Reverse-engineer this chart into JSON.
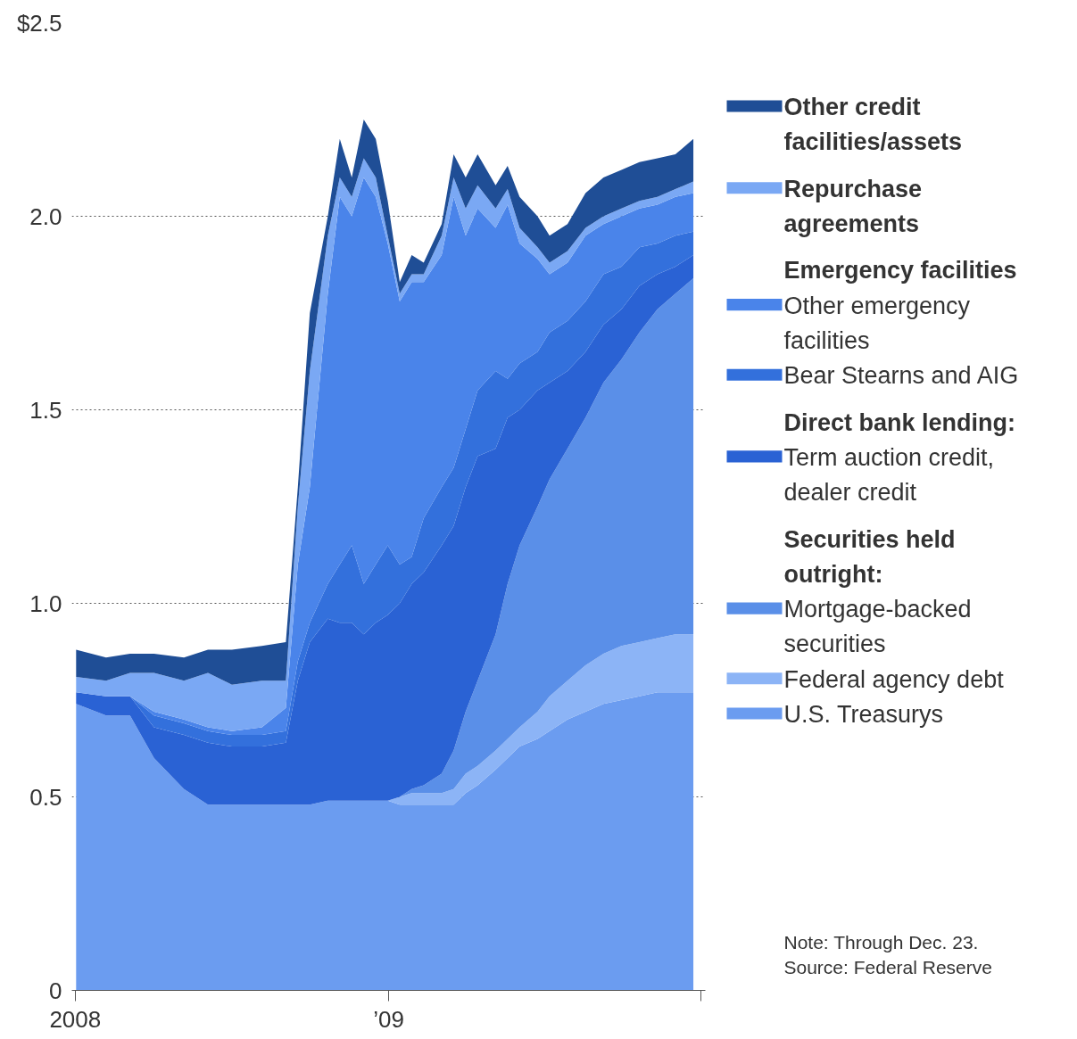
{
  "chart_data": {
    "type": "area",
    "stacked": true,
    "grid": "y",
    "legend": "right",
    "x": [
      "2008-01-02",
      "2008-02-06",
      "2008-03-05",
      "2008-04-02",
      "2008-05-07",
      "2008-06-04",
      "2008-07-02",
      "2008-08-06",
      "2008-09-03",
      "2008-09-17",
      "2008-10-01",
      "2008-10-22",
      "2008-11-05",
      "2008-11-19",
      "2008-12-03",
      "2008-12-17",
      "2008-12-31",
      "2009-01-14",
      "2009-01-28",
      "2009-02-11",
      "2009-03-04",
      "2009-03-18",
      "2009-04-01",
      "2009-04-15",
      "2009-05-06",
      "2009-05-20",
      "2009-06-03",
      "2009-06-24",
      "2009-07-08",
      "2009-07-29",
      "2009-08-19",
      "2009-09-09",
      "2009-09-30",
      "2009-10-21",
      "2009-11-11",
      "2009-12-02",
      "2009-12-23"
    ],
    "xlim": [
      "2007-12-28",
      "2010-01-06"
    ],
    "xticks": [
      {
        "value": "2008-01-01",
        "label": "2008"
      },
      {
        "value": "2009-01-01",
        "label": "’09"
      },
      {
        "value": "2010-01-01",
        "label": null
      }
    ],
    "ylim": [
      0,
      2.5
    ],
    "yticks": [
      0,
      0.5,
      {
        "value": 1,
        "label": "1.0"
      },
      1.5,
      {
        "value": 2,
        "label": "2.0"
      },
      {
        "value": 2.5,
        "label": "$2.5"
      }
    ],
    "series": [
      {
        "name": "U.S. Treasurys",
        "color": "#6b9cf0",
        "values": [
          0.74,
          0.71,
          0.71,
          0.6,
          0.52,
          0.48,
          0.48,
          0.48,
          0.48,
          0.48,
          0.48,
          0.49,
          0.49,
          0.49,
          0.49,
          0.49,
          0.49,
          0.48,
          0.48,
          0.48,
          0.48,
          0.48,
          0.51,
          0.53,
          0.57,
          0.6,
          0.63,
          0.65,
          0.67,
          0.7,
          0.72,
          0.74,
          0.75,
          0.76,
          0.77,
          0.77,
          0.77
        ]
      },
      {
        "name": "Federal agency debt",
        "color": "#8cb4f6",
        "values": [
          0,
          0,
          0,
          0,
          0,
          0,
          0,
          0,
          0,
          0,
          0,
          0,
          0,
          0,
          0,
          0,
          0,
          0.02,
          0.03,
          0.03,
          0.03,
          0.04,
          0.05,
          0.05,
          0.05,
          0.05,
          0.05,
          0.07,
          0.09,
          0.1,
          0.12,
          0.13,
          0.14,
          0.14,
          0.14,
          0.15,
          0.15
        ]
      },
      {
        "name": "Mortgage-backed securities",
        "color": "#5a8fe8",
        "values": [
          0,
          0,
          0,
          0,
          0,
          0,
          0,
          0,
          0,
          0,
          0,
          0,
          0,
          0,
          0,
          0,
          0,
          0,
          0.01,
          0.02,
          0.05,
          0.1,
          0.16,
          0.22,
          0.3,
          0.4,
          0.47,
          0.53,
          0.56,
          0.6,
          0.64,
          0.7,
          0.74,
          0.8,
          0.85,
          0.88,
          0.92
        ]
      },
      {
        "name": "Term auction credit, dealer credit",
        "color": "#2a62d4",
        "values": [
          0.03,
          0.05,
          0.05,
          0.08,
          0.14,
          0.16,
          0.15,
          0.15,
          0.16,
          0.32,
          0.42,
          0.47,
          0.46,
          0.46,
          0.43,
          0.46,
          0.48,
          0.5,
          0.53,
          0.55,
          0.59,
          0.58,
          0.58,
          0.58,
          0.48,
          0.43,
          0.35,
          0.3,
          0.25,
          0.2,
          0.17,
          0.15,
          0.13,
          0.12,
          0.09,
          0.07,
          0.06
        ]
      },
      {
        "name": "Bear Stearns and AIG",
        "color": "#3370dc",
        "values": [
          0,
          0,
          0,
          0.03,
          0.03,
          0.03,
          0.03,
          0.03,
          0.03,
          0.05,
          0.05,
          0.09,
          0.15,
          0.2,
          0.13,
          0.15,
          0.18,
          0.1,
          0.07,
          0.14,
          0.15,
          0.15,
          0.15,
          0.17,
          0.2,
          0.1,
          0.12,
          0.1,
          0.13,
          0.13,
          0.13,
          0.13,
          0.11,
          0.1,
          0.08,
          0.08,
          0.06
        ]
      },
      {
        "name": "Other emergency facilities",
        "color": "#4a84ea",
        "values": [
          0,
          0,
          0,
          0.01,
          0.01,
          0.01,
          0.01,
          0.02,
          0.06,
          0.25,
          0.35,
          0.75,
          0.95,
          0.85,
          1.05,
          0.95,
          0.78,
          0.68,
          0.71,
          0.61,
          0.6,
          0.7,
          0.5,
          0.47,
          0.37,
          0.45,
          0.31,
          0.24,
          0.15,
          0.15,
          0.17,
          0.13,
          0.13,
          0.1,
          0.1,
          0.1,
          0.1
        ]
      },
      {
        "name": "Repurchase agreements",
        "color": "#7aa8f4",
        "values": [
          0.04,
          0.04,
          0.06,
          0.1,
          0.1,
          0.14,
          0.12,
          0.12,
          0.07,
          0.15,
          0.3,
          0.15,
          0.05,
          0.05,
          0.05,
          0.05,
          0.02,
          0.02,
          0.02,
          0.02,
          0.05,
          0.05,
          0.07,
          0.06,
          0.05,
          0.04,
          0.04,
          0.03,
          0.03,
          0.03,
          0.02,
          0.02,
          0.02,
          0.02,
          0.02,
          0.02,
          0.03
        ]
      },
      {
        "name": "Other credit facilities/assets",
        "color": "#1f4e96",
        "values": [
          0.07,
          0.06,
          0.05,
          0.05,
          0.06,
          0.06,
          0.09,
          0.09,
          0.1,
          0.05,
          0.15,
          0.05,
          0.1,
          0.05,
          0.1,
          0.1,
          0.09,
          0.03,
          0.05,
          0.03,
          0.03,
          0.06,
          0.08,
          0.08,
          0.06,
          0.06,
          0.08,
          0.08,
          0.07,
          0.07,
          0.09,
          0.1,
          0.1,
          0.1,
          0.1,
          0.09,
          0.11
        ]
      }
    ],
    "annotations": [
      "Emergency facilities",
      "Direct bank lending:",
      "Securities held outright:",
      "Note: Through Dec. 23.",
      "Source: Federal Reserve"
    ]
  }
}
